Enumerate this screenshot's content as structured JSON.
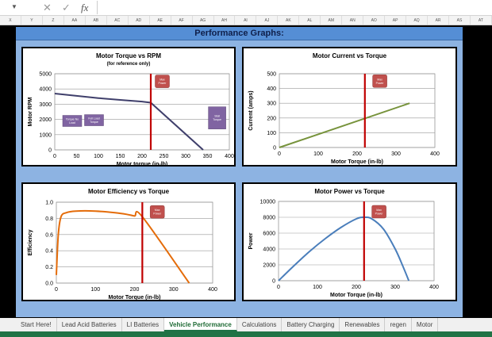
{
  "formula_bar": {
    "fx_label": "fx",
    "cancel_icon": "x-icon",
    "enter_icon": "check-icon"
  },
  "columns": [
    "X",
    "Y",
    "Z",
    "AA",
    "AB",
    "AC",
    "AD",
    "AE",
    "AF",
    "AG",
    "AH",
    "AI",
    "AJ",
    "AK",
    "AL",
    "AM",
    "AN",
    "AO",
    "AP",
    "AQ",
    "AR",
    "AS",
    "AT"
  ],
  "panel_title": "Performance Graphs:",
  "colors": {
    "marker": "#c00000",
    "label_purple": "#8064a2",
    "label_red": "#c0504d"
  },
  "chart_data": [
    {
      "type": "line",
      "title": "Motor Torque vs RPM",
      "subtitle": "(for reference only)",
      "xlabel": "Motor torque (in-lb)",
      "ylabel": "Motor RPM",
      "xlim": [
        0,
        400
      ],
      "ylim": [
        0,
        5000
      ],
      "xticks": [
        0,
        50,
        100,
        150,
        200,
        250,
        300,
        350,
        400
      ],
      "yticks": [
        0,
        1000,
        2000,
        3000,
        4000,
        5000
      ],
      "series": [
        {
          "name": "RPM",
          "color": "#3f3f6b",
          "x": [
            0,
            50,
            100,
            150,
            200,
            220,
            340
          ],
          "y": [
            3700,
            3550,
            3400,
            3280,
            3170,
            3100,
            0
          ]
        }
      ],
      "vline": 220,
      "annotations": [
        {
          "text": "Max Power",
          "x": 230,
          "y": 4500,
          "style": "red"
        },
        {
          "text": "Torque No Load",
          "x": 40,
          "y": 1900,
          "style": "purple"
        },
        {
          "text": "Full Load Torque",
          "x": 90,
          "y": 1950,
          "style": "purple"
        },
        {
          "text": "Stall Torque",
          "x": 372,
          "y": 2100,
          "style": "purple"
        }
      ]
    },
    {
      "type": "line",
      "title": "Motor Current vs Torque",
      "xlabel": "Motor Torque (in-lb)",
      "ylabel": "Current (amps)",
      "xlim": [
        0,
        400
      ],
      "ylim": [
        0,
        500
      ],
      "xticks": [
        0,
        100,
        200,
        300,
        400
      ],
      "yticks": [
        0,
        100,
        200,
        300,
        400,
        500
      ],
      "series": [
        {
          "name": "Current",
          "color": "#77933c",
          "x": [
            0,
            335
          ],
          "y": [
            0,
            300
          ]
        }
      ],
      "vline": 220,
      "annotations": [
        {
          "text": "Max Power",
          "x": 240,
          "y": 450,
          "style": "red"
        }
      ]
    },
    {
      "type": "line",
      "title": "Motor Efficiency vs Torque",
      "xlabel": "Motor Torque (in-lb)",
      "ylabel": "Efficiency",
      "xlim": [
        0,
        400
      ],
      "ylim": [
        0,
        1.0
      ],
      "xticks": [
        0,
        100,
        200,
        300,
        400
      ],
      "yticks": [
        0,
        0.2,
        0.4,
        0.6,
        0.8,
        1.0
      ],
      "ydec": 1,
      "series": [
        {
          "name": "Efficiency",
          "color": "#e46c0a",
          "x": [
            0,
            5,
            12,
            25,
            50,
            100,
            150,
            180,
            200,
            220,
            340
          ],
          "y": [
            0.1,
            0.6,
            0.82,
            0.87,
            0.89,
            0.89,
            0.87,
            0.85,
            0.83,
            0.82,
            0
          ]
        }
      ],
      "vline": 220,
      "annotations": [
        {
          "text": "Max Power",
          "x": 240,
          "y": 0.88,
          "style": "red"
        }
      ]
    },
    {
      "type": "line",
      "title": "Motor Power vs Torque",
      "xlabel": "Motor Torque (in-lb)",
      "ylabel": "Power",
      "xlim": [
        0,
        400
      ],
      "ylim": [
        0,
        10000
      ],
      "xticks": [
        0,
        100,
        200,
        300,
        400
      ],
      "yticks": [
        0,
        2000,
        4000,
        6000,
        8000,
        10000
      ],
      "series": [
        {
          "name": "Power",
          "color": "#4a7ebb",
          "x": [
            0,
            40,
            80,
            120,
            160,
            200,
            220,
            240,
            270,
            300,
            320,
            335
          ],
          "y": [
            0,
            1900,
            3700,
            5300,
            6700,
            7800,
            8000,
            7800,
            6500,
            4000,
            1800,
            0
          ]
        }
      ],
      "vline": 220,
      "annotations": [
        {
          "text": "Max Power",
          "x": 240,
          "y": 8700,
          "style": "red"
        }
      ]
    }
  ],
  "tabs": [
    "Start Here!",
    "Lead Acid Batteries",
    "LI Batteries",
    "Vehicle Performance",
    "Calculations",
    "Battery Charging",
    "Renewables",
    "regen",
    "Motor"
  ],
  "active_tab": "Vehicle Performance"
}
